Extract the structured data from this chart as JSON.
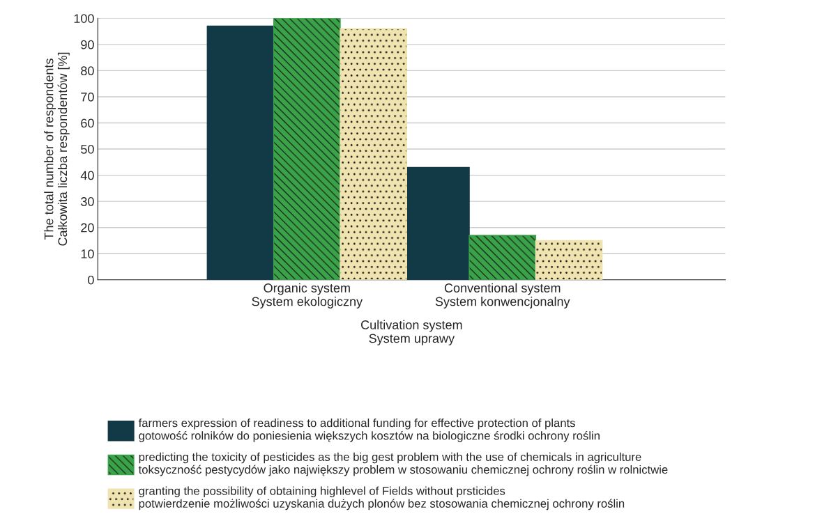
{
  "chart_data": {
    "type": "bar",
    "xlabel": "Cultivation system\nSystem uprawy",
    "ylabel": "The total number of respondents\nCałkowita liczba respondentów [%]",
    "categories": [
      "Organic system\nSystem ekologiczny",
      "Conventional system\nSystem konwencjonalny"
    ],
    "series": [
      {
        "name": "farmers expression of readiness to additional funding for effective protection of plants\ngotowość rolników do poniesienia większych kosztów na biologiczne środki ochrony roślin",
        "color": "#123a46",
        "values": [
          97,
          43
        ]
      },
      {
        "name": "predicting the toxicity of pesticides as the big gest problem with the use of chemicals in agriculture\ntoksyczność pestycydów jako największy problem w stosowaniu chemicznej ochrony roślin w rolnictwie",
        "color": "#3aa34a",
        "values": [
          100,
          17
        ]
      },
      {
        "name": "granting the possibility of obtaining highlevel of Fields without prsticides\npotwierdzenie możliwości uzyskania dużych plonów bez stosowania chemicznej ochrony roślin",
        "color": "#efe3b0",
        "values": [
          96,
          15
        ]
      }
    ],
    "ylim": [
      0,
      100
    ],
    "yticks": [
      0,
      10,
      20,
      30,
      40,
      50,
      60,
      70,
      80,
      90,
      100
    ],
    "grid": "y",
    "legend": "bottom"
  }
}
